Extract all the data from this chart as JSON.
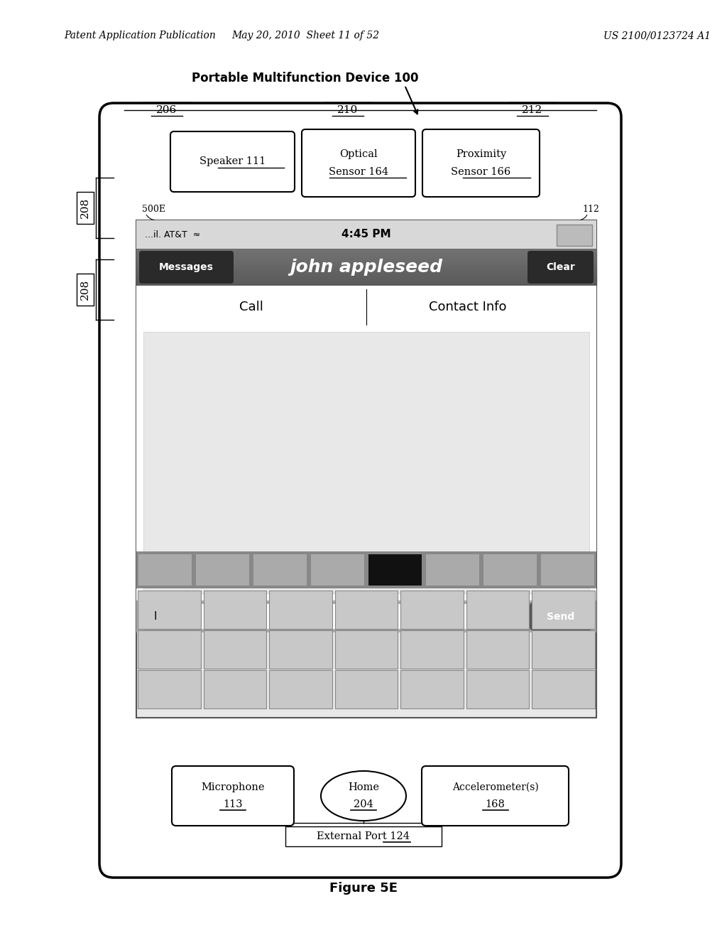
{
  "bg_color": "#ffffff",
  "header_left": "Patent Application Publication",
  "header_mid": "May 20, 2010  Sheet 11 of 52",
  "header_right": "US 2100/0123724 A1",
  "title": "Portable Multifunction Device 100",
  "figure_label": "Figure 5E",
  "label_206": "206",
  "label_210": "210",
  "label_212": "212",
  "label_208a": "208",
  "label_208b": "208",
  "label_500E": "500E",
  "label_112": "112",
  "speaker_text": "Speaker 111",
  "optical_text1": "Optical",
  "optical_text2": "Sensor 164",
  "proximity_text1": "Proximity",
  "proximity_text2": "Sensor 166",
  "status_carrier": "...il. AT&T",
  "status_time": "4:45 PM",
  "nav_messages": "Messages",
  "nav_center": "john appleseed",
  "nav_clear": "Clear",
  "call_text": "Call",
  "contact_text": "Contact Info",
  "input_cursor": "I",
  "send_text": "Send",
  "mic_text1": "Microphone",
  "mic_text2": "113",
  "home_text1": "Home",
  "home_text2": "204",
  "accel_text1": "Accelerometer(s)",
  "accel_text2": "168",
  "ext_port_text": "External Port 124"
}
